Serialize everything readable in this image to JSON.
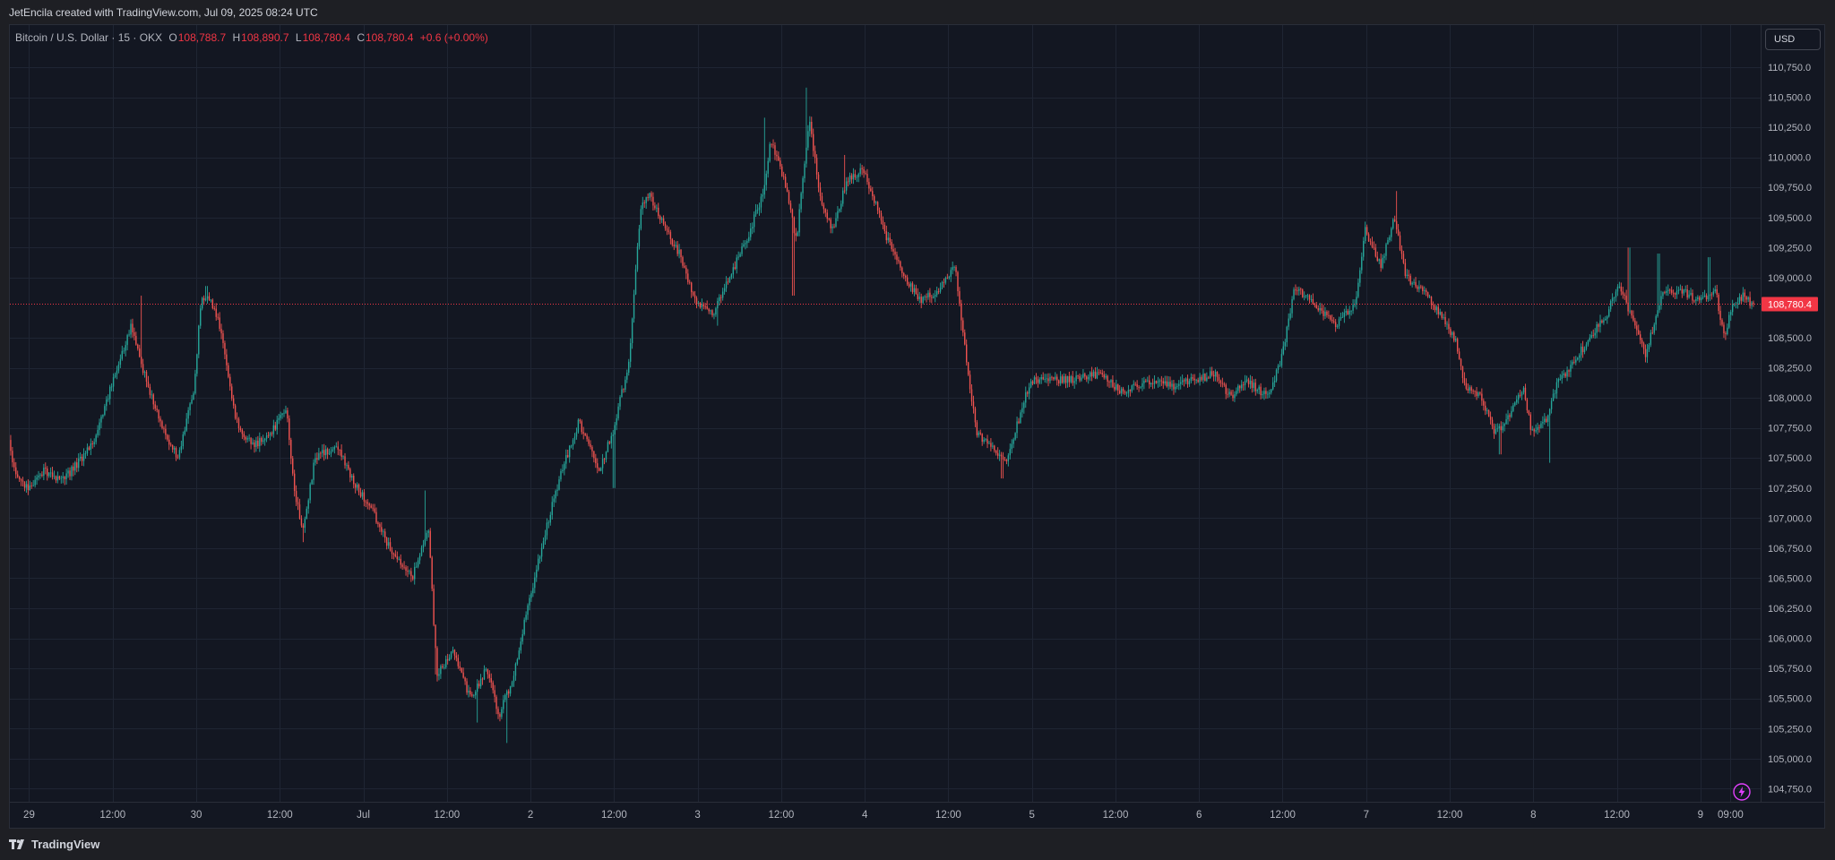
{
  "header": {
    "attribution": "JetEncila created with TradingView.com, Jul 09, 2025 08:24 UTC"
  },
  "legend": {
    "symbol": "Bitcoin / U.S. Dollar · 15 · OKX",
    "open_label": "O",
    "open": "108,788.7",
    "high_label": "H",
    "high": "108,890.7",
    "low_label": "L",
    "low": "108,780.4",
    "close_label": "C",
    "close": "108,780.4",
    "change": "+0.6 (+0.00%)"
  },
  "currency": "USD",
  "footer": {
    "brand": "TradingView"
  },
  "colors": {
    "background": "#131722",
    "up": "#26a69a",
    "down": "#ef5350",
    "grid": "#1f2533",
    "price_line": "#f23645"
  },
  "chart_data": {
    "type": "candlestick",
    "interval": "15",
    "ylim": [
      104630,
      111100
    ],
    "y_ticks": [
      {
        "value": 104750,
        "label": "104,750.0"
      },
      {
        "value": 105000,
        "label": "105,000.0"
      },
      {
        "value": 105250,
        "label": "105,250.0"
      },
      {
        "value": 105500,
        "label": "105,500.0"
      },
      {
        "value": 105750,
        "label": "105,750.0"
      },
      {
        "value": 106000,
        "label": "106,000.0"
      },
      {
        "value": 106250,
        "label": "106,250.0"
      },
      {
        "value": 106500,
        "label": "106,500.0"
      },
      {
        "value": 106750,
        "label": "106,750.0"
      },
      {
        "value": 107000,
        "label": "107,000.0"
      },
      {
        "value": 107250,
        "label": "107,250.0"
      },
      {
        "value": 107500,
        "label": "107,500.0"
      },
      {
        "value": 107750,
        "label": "107,750.0"
      },
      {
        "value": 108000,
        "label": "108,000.0"
      },
      {
        "value": 108250,
        "label": "108,250.0"
      },
      {
        "value": 108500,
        "label": "108,500.0"
      },
      {
        "value": 109000,
        "label": "109,000.0"
      },
      {
        "value": 109250,
        "label": "109,250.0"
      },
      {
        "value": 109500,
        "label": "109,500.0"
      },
      {
        "value": 109750,
        "label": "109,750.0"
      },
      {
        "value": 110000,
        "label": "110,000.0"
      },
      {
        "value": 110250,
        "label": "110,250.0"
      },
      {
        "value": 110500,
        "label": "110,500.0"
      },
      {
        "value": 110750,
        "label": "110,750.0"
      }
    ],
    "x_ticks": [
      {
        "t": 0.0,
        "label": "29"
      },
      {
        "t": 0.5,
        "label": "12:00"
      },
      {
        "t": 1.0,
        "label": "30"
      },
      {
        "t": 1.5,
        "label": "12:00"
      },
      {
        "t": 2.0,
        "label": "Jul"
      },
      {
        "t": 2.5,
        "label": "12:00"
      },
      {
        "t": 3.0,
        "label": "2"
      },
      {
        "t": 3.5,
        "label": "12:00"
      },
      {
        "t": 4.0,
        "label": "3"
      },
      {
        "t": 4.5,
        "label": "12:00"
      },
      {
        "t": 5.0,
        "label": "4"
      },
      {
        "t": 5.5,
        "label": "12:00"
      },
      {
        "t": 6.0,
        "label": "5"
      },
      {
        "t": 6.5,
        "label": "12:00"
      },
      {
        "t": 7.0,
        "label": "6"
      },
      {
        "t": 7.5,
        "label": "12:00"
      },
      {
        "t": 8.0,
        "label": "7"
      },
      {
        "t": 8.5,
        "label": "12:00"
      },
      {
        "t": 9.0,
        "label": "8"
      },
      {
        "t": 9.5,
        "label": "12:00"
      },
      {
        "t": 10.0,
        "label": "9"
      },
      {
        "t": 10.18,
        "label": "09:00"
      }
    ],
    "x_domain": [
      -0.115,
      10.36
    ],
    "last_price": {
      "value": 108780.4,
      "label": "108,780.4"
    },
    "price_path": [
      [
        -0.11,
        107650
      ],
      [
        -0.08,
        107400
      ],
      [
        0.0,
        107250
      ],
      [
        0.1,
        107400
      ],
      [
        0.2,
        107300
      ],
      [
        0.3,
        107450
      ],
      [
        0.4,
        107650
      ],
      [
        0.55,
        108300
      ],
      [
        0.62,
        108600
      ],
      [
        0.7,
        108200
      ],
      [
        0.82,
        107700
      ],
      [
        0.9,
        107500
      ],
      [
        1.0,
        108100
      ],
      [
        1.04,
        108850
      ],
      [
        1.1,
        108800
      ],
      [
        1.15,
        108600
      ],
      [
        1.25,
        107800
      ],
      [
        1.35,
        107600
      ],
      [
        1.45,
        107700
      ],
      [
        1.55,
        107900
      ],
      [
        1.6,
        107200
      ],
      [
        1.65,
        106900
      ],
      [
        1.72,
        107500
      ],
      [
        1.85,
        107600
      ],
      [
        1.95,
        107300
      ],
      [
        2.05,
        107100
      ],
      [
        2.15,
        106800
      ],
      [
        2.3,
        106500
      ],
      [
        2.4,
        106900
      ],
      [
        2.45,
        105700
      ],
      [
        2.55,
        105900
      ],
      [
        2.65,
        105500
      ],
      [
        2.75,
        105750
      ],
      [
        2.82,
        105350
      ],
      [
        2.9,
        105650
      ],
      [
        3.0,
        106300
      ],
      [
        3.1,
        106900
      ],
      [
        3.2,
        107400
      ],
      [
        3.3,
        107800
      ],
      [
        3.42,
        107400
      ],
      [
        3.5,
        107700
      ],
      [
        3.6,
        108300
      ],
      [
        3.67,
        109600
      ],
      [
        3.72,
        109700
      ],
      [
        3.78,
        109500
      ],
      [
        3.9,
        109200
      ],
      [
        4.0,
        108800
      ],
      [
        4.1,
        108700
      ],
      [
        4.2,
        109000
      ],
      [
        4.3,
        109300
      ],
      [
        4.4,
        109700
      ],
      [
        4.45,
        110150
      ],
      [
        4.55,
        109700
      ],
      [
        4.6,
        109300
      ],
      [
        4.68,
        110300
      ],
      [
        4.75,
        109600
      ],
      [
        4.82,
        109400
      ],
      [
        4.9,
        109800
      ],
      [
        5.0,
        109900
      ],
      [
        5.08,
        109600
      ],
      [
        5.15,
        109300
      ],
      [
        5.25,
        109000
      ],
      [
        5.35,
        108800
      ],
      [
        5.45,
        108900
      ],
      [
        5.55,
        109100
      ],
      [
        5.6,
        108500
      ],
      [
        5.68,
        107700
      ],
      [
        5.78,
        107600
      ],
      [
        5.85,
        107450
      ],
      [
        5.95,
        107900
      ],
      [
        6.0,
        108150
      ],
      [
        6.1,
        108150
      ],
      [
        6.25,
        108150
      ],
      [
        6.4,
        108200
      ],
      [
        6.55,
        108050
      ],
      [
        6.7,
        108150
      ],
      [
        6.85,
        108100
      ],
      [
        7.0,
        108150
      ],
      [
        7.1,
        108200
      ],
      [
        7.2,
        108000
      ],
      [
        7.3,
        108150
      ],
      [
        7.42,
        108000
      ],
      [
        7.5,
        108300
      ],
      [
        7.58,
        108900
      ],
      [
        7.7,
        108800
      ],
      [
        7.82,
        108600
      ],
      [
        7.95,
        108800
      ],
      [
        8.0,
        109400
      ],
      [
        8.1,
        109100
      ],
      [
        8.18,
        109500
      ],
      [
        8.25,
        109000
      ],
      [
        8.35,
        108900
      ],
      [
        8.45,
        108700
      ],
      [
        8.55,
        108450
      ],
      [
        8.6,
        108100
      ],
      [
        8.7,
        108000
      ],
      [
        8.78,
        107700
      ],
      [
        8.85,
        107800
      ],
      [
        8.95,
        108100
      ],
      [
        9.0,
        107700
      ],
      [
        9.08,
        107800
      ],
      [
        9.15,
        108100
      ],
      [
        9.25,
        108300
      ],
      [
        9.35,
        108500
      ],
      [
        9.45,
        108700
      ],
      [
        9.52,
        108950
      ],
      [
        9.62,
        108600
      ],
      [
        9.68,
        108350
      ],
      [
        9.78,
        108850
      ],
      [
        9.9,
        108900
      ],
      [
        10.0,
        108800
      ],
      [
        10.1,
        108900
      ],
      [
        10.15,
        108500
      ],
      [
        10.2,
        108750
      ],
      [
        10.27,
        108850
      ],
      [
        10.32,
        108780
      ]
    ],
    "spikes": [
      {
        "t": 0.67,
        "high": 108850
      },
      {
        "t": 1.06,
        "high": 108930
      },
      {
        "t": 1.64,
        "low": 106800
      },
      {
        "t": 2.37,
        "high": 107230
      },
      {
        "t": 2.43,
        "low": 105700
      },
      {
        "t": 2.68,
        "low": 105300
      },
      {
        "t": 2.86,
        "low": 105130
      },
      {
        "t": 3.5,
        "low": 107250
      },
      {
        "t": 4.12,
        "low": 108600
      },
      {
        "t": 4.4,
        "high": 110330
      },
      {
        "t": 4.57,
        "low": 108850
      },
      {
        "t": 4.65,
        "high": 110580
      },
      {
        "t": 4.88,
        "high": 110020
      },
      {
        "t": 5.58,
        "low": 108560
      },
      {
        "t": 5.82,
        "low": 107330
      },
      {
        "t": 8.18,
        "high": 109720
      },
      {
        "t": 8.34,
        "low": 108860
      },
      {
        "t": 8.8,
        "low": 107530
      },
      {
        "t": 9.1,
        "low": 107460
      },
      {
        "t": 9.57,
        "high": 109250
      },
      {
        "t": 9.75,
        "high": 109200
      },
      {
        "t": 10.05,
        "high": 109170
      }
    ]
  }
}
